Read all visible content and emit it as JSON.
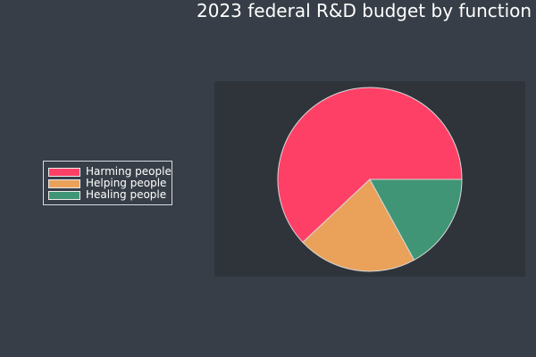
{
  "chart_data": {
    "type": "pie",
    "title": "2023 federal R&D budget by function",
    "slices": [
      {
        "label": "Harming people",
        "value": 62,
        "color": "#ff4066"
      },
      {
        "label": "Helping people",
        "value": 21,
        "color": "#eaa15a"
      },
      {
        "label": "Healing people",
        "value": 17,
        "color": "#3f9575"
      }
    ],
    "legend_position": "left",
    "start_angle_deg": 0,
    "direction": "counterclockwise",
    "slice_edge_color": "#d7d7d7"
  },
  "colors": {
    "background": "#373e47",
    "plot_background": "#2f343b",
    "text": "#ffffff"
  }
}
